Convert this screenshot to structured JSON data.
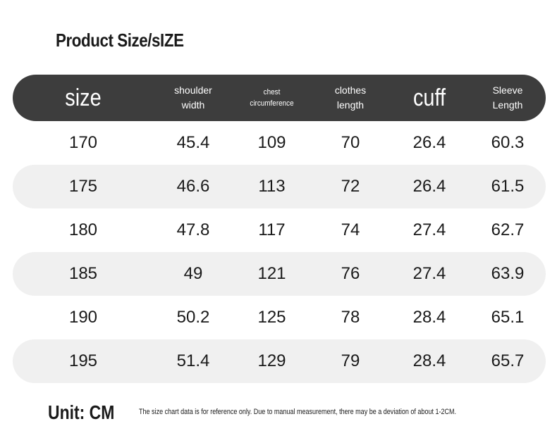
{
  "title": "Product Size/sIZE",
  "headers": [
    {
      "text": "size",
      "size": "big"
    },
    {
      "text": "shoulder\nwidth",
      "size": "med"
    },
    {
      "text": "chest\ncircumference",
      "size": "small"
    },
    {
      "text": "clothes\nlength",
      "size": "med"
    },
    {
      "text": "cuff",
      "size": "big"
    },
    {
      "text": "Sleeve\nLength",
      "size": "med"
    }
  ],
  "rows": [
    [
      "170",
      "45.4",
      "109",
      "70",
      "26.4",
      "60.3"
    ],
    [
      "175",
      "46.6",
      "113",
      "72",
      "26.4",
      "61.5"
    ],
    [
      "180",
      "47.8",
      "117",
      "74",
      "27.4",
      "62.7"
    ],
    [
      "185",
      "49",
      "121",
      "76",
      "27.4",
      "63.9"
    ],
    [
      "190",
      "50.2",
      "125",
      "78",
      "28.4",
      "65.1"
    ],
    [
      "195",
      "51.4",
      "129",
      "79",
      "28.4",
      "65.7"
    ]
  ],
  "footer": {
    "unit": "Unit: CM",
    "note": "The size chart data is for reference only. Due to manual measurement, there may be a deviation of about 1-2CM."
  }
}
